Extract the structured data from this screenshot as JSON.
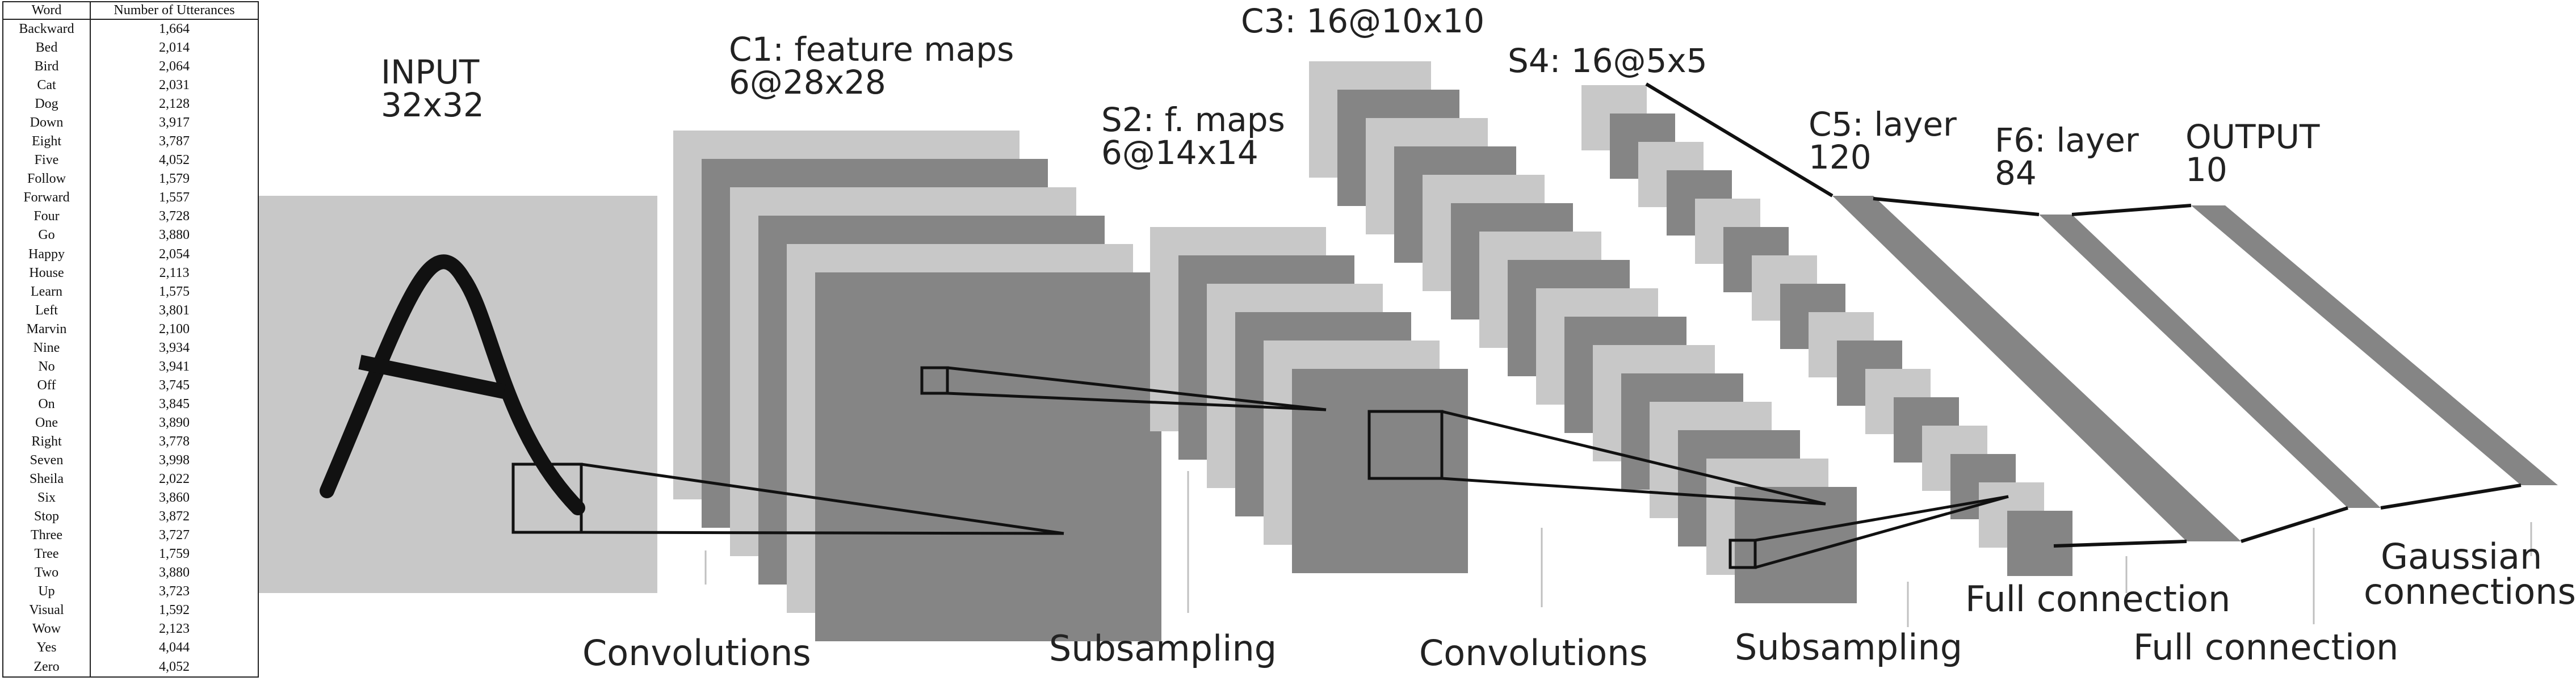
{
  "table": {
    "headers": [
      "Word",
      "Number of Utterances"
    ],
    "rows": [
      [
        "Backward",
        "1,664"
      ],
      [
        "Bed",
        "2,014"
      ],
      [
        "Bird",
        "2,064"
      ],
      [
        "Cat",
        "2,031"
      ],
      [
        "Dog",
        "2,128"
      ],
      [
        "Down",
        "3,917"
      ],
      [
        "Eight",
        "3,787"
      ],
      [
        "Five",
        "4,052"
      ],
      [
        "Follow",
        "1,579"
      ],
      [
        "Forward",
        "1,557"
      ],
      [
        "Four",
        "3,728"
      ],
      [
        "Go",
        "3,880"
      ],
      [
        "Happy",
        "2,054"
      ],
      [
        "House",
        "2,113"
      ],
      [
        "Learn",
        "1,575"
      ],
      [
        "Left",
        "3,801"
      ],
      [
        "Marvin",
        "2,100"
      ],
      [
        "Nine",
        "3,934"
      ],
      [
        "No",
        "3,941"
      ],
      [
        "Off",
        "3,745"
      ],
      [
        "On",
        "3,845"
      ],
      [
        "One",
        "3,890"
      ],
      [
        "Right",
        "3,778"
      ],
      [
        "Seven",
        "3,998"
      ],
      [
        "Sheila",
        "2,022"
      ],
      [
        "Six",
        "3,860"
      ],
      [
        "Stop",
        "3,872"
      ],
      [
        "Three",
        "3,727"
      ],
      [
        "Tree",
        "1,759"
      ],
      [
        "Two",
        "3,880"
      ],
      [
        "Up",
        "3,723"
      ],
      [
        "Visual",
        "1,592"
      ],
      [
        "Wow",
        "2,123"
      ],
      [
        "Yes",
        "4,044"
      ],
      [
        "Zero",
        "4,052"
      ]
    ]
  },
  "diagram": {
    "input": {
      "line1": "INPUT",
      "line2": "32x32"
    },
    "c1": {
      "line1": "C1: feature maps",
      "line2": "6@28x28"
    },
    "s2": {
      "line1": "S2: f. maps",
      "line2": "6@14x14"
    },
    "c3": {
      "line1": "C3: 16@10x10"
    },
    "s4": {
      "line1": "S4: 16@5x5"
    },
    "c5": {
      "line1": "C5: layer",
      "line2": "120"
    },
    "f6": {
      "line1": "F6: layer",
      "line2": "84"
    },
    "output": {
      "line1": "OUTPUT",
      "line2": "10"
    },
    "ops": {
      "conv1": "Convolutions",
      "sub1": "Subsampling",
      "conv2": "Convolutions",
      "sub2": "Subsampling",
      "full1": "Full connection",
      "full2": "Full connection",
      "gauss1": "Gaussian",
      "gauss2": "connections"
    },
    "colors": {
      "light": "#c8c8c8",
      "dark": "#858585",
      "line": "#111111"
    }
  }
}
